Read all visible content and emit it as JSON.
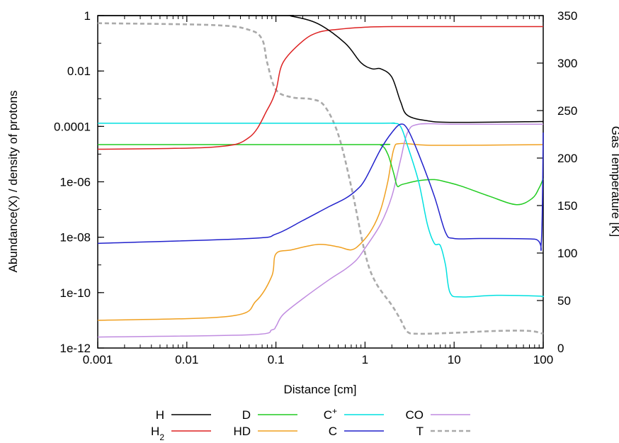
{
  "chart_data": {
    "type": "line",
    "title": "",
    "xlabel": "Distance [cm]",
    "ylabel": "Abundance(X) / density of protons",
    "y2label": "Gas Temperature [K]",
    "xscale": "log",
    "yscale": "log",
    "xlim": [
      0.001,
      100
    ],
    "ylim": [
      1e-12,
      1
    ],
    "y2lim": [
      0,
      350
    ],
    "x_ticks": [
      {
        "v": 0.001,
        "label": "0.001"
      },
      {
        "v": 0.01,
        "label": "0.01"
      },
      {
        "v": 0.1,
        "label": "0.1"
      },
      {
        "v": 1,
        "label": "1"
      },
      {
        "v": 10,
        "label": "10"
      },
      {
        "v": 100,
        "label": "100"
      }
    ],
    "y_ticks": [
      {
        "v": 1,
        "label": "1"
      },
      {
        "v": 0.01,
        "label": "0.01"
      },
      {
        "v": 0.0001,
        "label": "0.0001"
      },
      {
        "v": 1e-06,
        "label": "1e-06"
      },
      {
        "v": 1e-08,
        "label": "1e-08"
      },
      {
        "v": 1e-10,
        "label": "1e-10"
      },
      {
        "v": 1e-12,
        "label": "1e-12"
      }
    ],
    "y2_ticks": [
      {
        "v": 350,
        "label": "350"
      },
      {
        "v": 300,
        "label": "300"
      },
      {
        "v": 250,
        "label": "250"
      },
      {
        "v": 200,
        "label": "200"
      },
      {
        "v": 150,
        "label": "150"
      },
      {
        "v": 100,
        "label": "100"
      },
      {
        "v": 50,
        "label": "50"
      },
      {
        "v": 0,
        "label": "0"
      }
    ],
    "grid": false,
    "legend_position": "bottom-center",
    "series": [
      {
        "name": "H",
        "sub": "",
        "sup": "",
        "color": "#000000",
        "dash": "solid",
        "axis": "left",
        "points": [
          [
            0.001,
            1
          ],
          [
            0.1,
            1
          ],
          [
            0.15,
            0.95
          ],
          [
            0.3,
            0.5
          ],
          [
            0.6,
            0.1
          ],
          [
            0.9,
            0.02
          ],
          [
            1.2,
            0.012
          ],
          [
            1.5,
            0.012
          ],
          [
            2,
            0.006
          ],
          [
            2.5,
            0.0008
          ],
          [
            3,
            0.00025
          ],
          [
            5,
            0.00016
          ],
          [
            10,
            0.00014
          ],
          [
            100,
            0.00015
          ]
        ]
      },
      {
        "name": "H",
        "sub": "2",
        "sup": "",
        "color": "#dd2222",
        "dash": "solid",
        "axis": "left",
        "points": [
          [
            0.001,
            1.5e-05
          ],
          [
            0.02,
            1.8e-05
          ],
          [
            0.05,
            4e-05
          ],
          [
            0.08,
            0.0004
          ],
          [
            0.1,
            0.002
          ],
          [
            0.12,
            0.02
          ],
          [
            0.2,
            0.12
          ],
          [
            0.3,
            0.25
          ],
          [
            0.5,
            0.32
          ],
          [
            1,
            0.38
          ],
          [
            2,
            0.4
          ],
          [
            10,
            0.4
          ],
          [
            100,
            0.4
          ]
        ]
      },
      {
        "name": "D",
        "sub": "",
        "sup": "",
        "color": "#22cc22",
        "dash": "solid",
        "axis": "left",
        "points": [
          [
            0.001,
            2.2e-05
          ],
          [
            1,
            2.2e-05
          ],
          [
            1.5,
            2.1e-05
          ],
          [
            1.8,
            1e-05
          ],
          [
            2.1,
            2e-06
          ],
          [
            2.3,
            7e-07
          ],
          [
            2.6,
            8e-07
          ],
          [
            4,
            1.1e-06
          ],
          [
            6,
            1.2e-06
          ],
          [
            8,
            1e-06
          ],
          [
            12,
            7e-07
          ],
          [
            25,
            3e-07
          ],
          [
            50,
            1.5e-07
          ],
          [
            75,
            2.5e-07
          ],
          [
            90,
            6e-07
          ],
          [
            100,
            1.3e-06
          ]
        ]
      },
      {
        "name": "HD",
        "sub": "",
        "sup": "",
        "color": "#f0a020",
        "dash": "solid",
        "axis": "left",
        "points": [
          [
            0.001,
            1e-11
          ],
          [
            0.03,
            1.4e-11
          ],
          [
            0.06,
            5e-11
          ],
          [
            0.09,
            4e-10
          ],
          [
            0.1,
            2.5e-09
          ],
          [
            0.15,
            3.5e-09
          ],
          [
            0.3,
            5.5e-09
          ],
          [
            0.5,
            4.5e-09
          ],
          [
            0.7,
            3.5e-09
          ],
          [
            0.9,
            6e-09
          ],
          [
            1.2,
            2e-08
          ],
          [
            1.5,
            1e-07
          ],
          [
            1.8,
            1e-06
          ],
          [
            2.1,
            1.5e-05
          ],
          [
            2.5,
            2.4e-05
          ],
          [
            5,
            2.1e-05
          ],
          [
            20,
            2.1e-05
          ],
          [
            100,
            2.2e-05
          ]
        ]
      },
      {
        "name": "C",
        "sub": "",
        "sup": "+",
        "color": "#00e0e0",
        "dash": "solid",
        "axis": "left",
        "points": [
          [
            0.001,
            0.00013
          ],
          [
            1,
            0.00013
          ],
          [
            2,
            0.00013
          ],
          [
            2.5,
            0.0001
          ],
          [
            3,
            2e-05
          ],
          [
            4,
            1e-06
          ],
          [
            5,
            3e-08
          ],
          [
            6,
            6e-09
          ],
          [
            7,
            5e-09
          ],
          [
            8,
            1e-09
          ],
          [
            9,
            1e-10
          ],
          [
            12,
            7e-11
          ],
          [
            30,
            8e-11
          ],
          [
            90,
            7.5e-11
          ],
          [
            97,
            7e-11
          ]
        ]
      },
      {
        "name": "C",
        "sub": "",
        "sup": "",
        "color": "#2222cc",
        "dash": "solid",
        "axis": "left",
        "points": [
          [
            0.001,
            6e-09
          ],
          [
            0.05,
            9e-09
          ],
          [
            0.1,
            1.3e-08
          ],
          [
            0.2,
            4e-08
          ],
          [
            0.4,
            1.3e-07
          ],
          [
            0.6,
            2.5e-07
          ],
          [
            0.8,
            5e-07
          ],
          [
            1,
            1.2e-06
          ],
          [
            1.5,
            1.5e-05
          ],
          [
            2,
            6e-05
          ],
          [
            2.5,
            0.00012
          ],
          [
            3,
            8e-05
          ],
          [
            4,
            1e-05
          ],
          [
            6,
            3e-07
          ],
          [
            8,
            1.5e-08
          ],
          [
            10,
            9e-09
          ],
          [
            20,
            9e-09
          ],
          [
            80,
            8.5e-09
          ],
          [
            95,
            6e-09
          ],
          [
            100,
            6e-05
          ]
        ]
      },
      {
        "name": "CO",
        "sub": "",
        "sup": "",
        "color": "#c08ce0",
        "dash": "solid",
        "axis": "left",
        "points": [
          [
            0.001,
            2.5e-12
          ],
          [
            0.05,
            3e-12
          ],
          [
            0.09,
            4.5e-12
          ],
          [
            0.1,
            6e-12
          ],
          [
            0.12,
            1.6e-11
          ],
          [
            0.2,
            6e-11
          ],
          [
            0.4,
            3e-10
          ],
          [
            0.6,
            7e-10
          ],
          [
            0.8,
            1.5e-09
          ],
          [
            1,
            4e-09
          ],
          [
            1.5,
            3e-08
          ],
          [
            2,
            3e-07
          ],
          [
            2.5,
            6e-06
          ],
          [
            3,
            6e-05
          ],
          [
            4,
            0.00012
          ],
          [
            10,
            0.00012
          ],
          [
            100,
            0.00012
          ]
        ]
      },
      {
        "name": "T",
        "sub": "",
        "sup": "",
        "color": "#aaaaaa",
        "dash": "dashed",
        "axis": "right",
        "points": [
          [
            0.001,
            342
          ],
          [
            0.02,
            340
          ],
          [
            0.05,
            335
          ],
          [
            0.07,
            325
          ],
          [
            0.08,
            300
          ],
          [
            0.1,
            272
          ],
          [
            0.15,
            264
          ],
          [
            0.25,
            262
          ],
          [
            0.35,
            255
          ],
          [
            0.5,
            225
          ],
          [
            0.7,
            170
          ],
          [
            1,
            100
          ],
          [
            1.3,
            70
          ],
          [
            2,
            45
          ],
          [
            2.5,
            30
          ],
          [
            3,
            17
          ],
          [
            4,
            15
          ],
          [
            10,
            16
          ],
          [
            30,
            18
          ],
          [
            70,
            18
          ],
          [
            100,
            15
          ]
        ]
      }
    ]
  }
}
